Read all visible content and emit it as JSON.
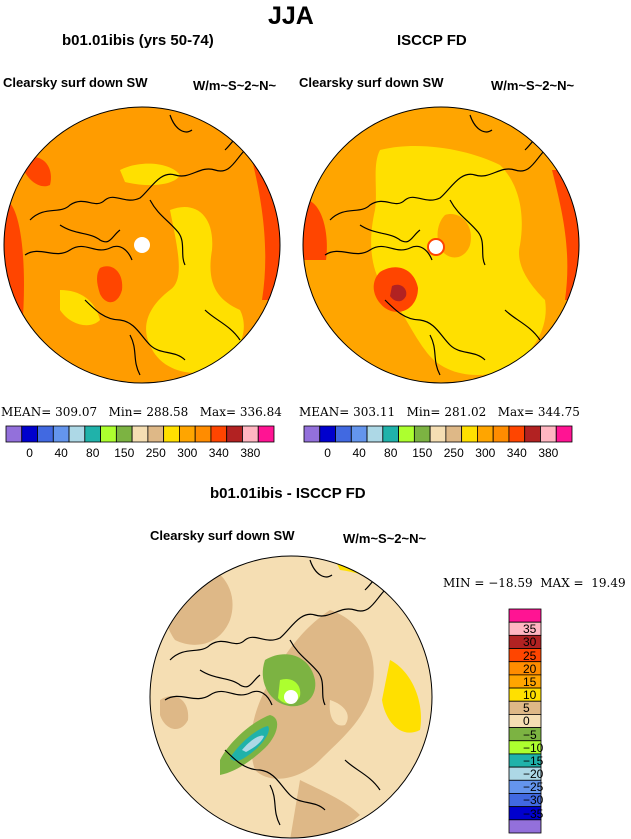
{
  "page": {
    "title": "JJA",
    "left_panel": {
      "subtitle": "b01.01ibis (yrs 50-74)",
      "variable": "Clearsky surf down SW",
      "units": "W/m~S~2~N~",
      "stats": {
        "mean_label": "MEAN=",
        "mean": "309.07",
        "min_label": "Min=",
        "min": "288.58",
        "max_label": "Max=",
        "max": "336.84"
      }
    },
    "right_panel": {
      "subtitle": "ISCCP FD",
      "variable": "Clearsky surf down SW",
      "units": "W/m~S~2~N~",
      "stats": {
        "mean_label": "MEAN=",
        "mean": "303.11",
        "min_label": "Min=",
        "min": "281.02",
        "max_label": "Max=",
        "max": "344.75"
      }
    },
    "diff_panel": {
      "subtitle": "b01.01ibis - ISCCP FD",
      "variable": "Clearsky surf down SW",
      "units": "W/m~S~2~N~",
      "stats_text": "MIN = −18.59  MAX =  19.49"
    }
  },
  "chart_data": [
    {
      "type": "heatmap",
      "projection": "polar-stereographic",
      "title": "b01.01ibis (yrs 50-74)",
      "field": "Clearsky surf down SW",
      "units": "W/m~S~2~N~",
      "mean": 309.07,
      "min": 288.58,
      "max": 336.84,
      "colorbar": {
        "tick_labels": [
          "0",
          "40",
          "80",
          "150",
          "250",
          "300",
          "340",
          "380"
        ],
        "colors": [
          "#9370db",
          "#0000cd",
          "#4169e1",
          "#6495ed",
          "#add8e6",
          "#20b2aa",
          "#adff2f",
          "#7cb342",
          "#f5deb3",
          "#deb887",
          "#ffe000",
          "#ffa500",
          "#ff8c00",
          "#ff4500",
          "#b22222",
          "#ffb6c1",
          "#ff1493"
        ]
      }
    },
    {
      "type": "heatmap",
      "projection": "polar-stereographic",
      "title": "ISCCP FD",
      "field": "Clearsky surf down SW",
      "units": "W/m~S~2~N~",
      "mean": 303.11,
      "min": 281.02,
      "max": 344.75,
      "colorbar": {
        "tick_labels": [
          "0",
          "40",
          "80",
          "150",
          "250",
          "300",
          "340",
          "380"
        ],
        "colors": [
          "#9370db",
          "#0000cd",
          "#4169e1",
          "#6495ed",
          "#add8e6",
          "#20b2aa",
          "#adff2f",
          "#7cb342",
          "#f5deb3",
          "#deb887",
          "#ffe000",
          "#ffa500",
          "#ff8c00",
          "#ff4500",
          "#b22222",
          "#ffb6c1",
          "#ff1493"
        ]
      }
    },
    {
      "type": "heatmap",
      "projection": "polar-stereographic",
      "title": "b01.01ibis - ISCCP FD",
      "field": "Clearsky surf down SW",
      "units": "W/m~S~2~N~",
      "min": -18.59,
      "max": 19.49,
      "colorbar": {
        "tick_labels": [
          "35",
          "30",
          "25",
          "20",
          "15",
          "10",
          "5",
          "0",
          "−5",
          "−10",
          "−15",
          "−20",
          "−25",
          "−30",
          "−35"
        ],
        "colors": [
          "#ff1493",
          "#ffb6c1",
          "#b22222",
          "#ff4500",
          "#ff8c00",
          "#ffa500",
          "#ffe000",
          "#deb887",
          "#f5deb3",
          "#7cb342",
          "#adff2f",
          "#20b2aa",
          "#add8e6",
          "#6495ed",
          "#4169e1",
          "#0000cd",
          "#9370db"
        ]
      }
    }
  ]
}
